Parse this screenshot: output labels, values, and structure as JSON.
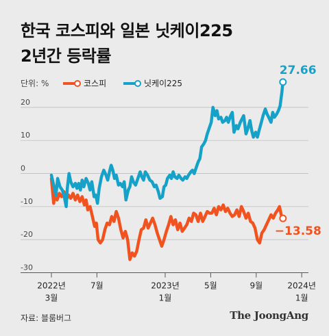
{
  "title_lines": [
    "한국 코스피와 일본 닛케이225",
    "2년간 등락률"
  ],
  "source": "자료: 블룸버그",
  "brand": "The JoongAng",
  "chart_data": {
    "type": "line",
    "unit_label": "단위: %",
    "ylim": [
      -30,
      30
    ],
    "yticks": [
      20,
      10,
      0,
      -10,
      -20,
      -30
    ],
    "xticks": [
      {
        "month": 0,
        "line1": "2022년",
        "line2": "3월"
      },
      {
        "month": 4,
        "line1": "7월",
        "line2": ""
      },
      {
        "month": 10,
        "line1": "2023년",
        "line2": "1월"
      },
      {
        "month": 14,
        "line1": "5월",
        "line2": ""
      },
      {
        "month": 18,
        "line1": "9월",
        "line2": ""
      },
      {
        "month": 22,
        "line1": "2024년",
        "line2": "1월"
      }
    ],
    "legend_position": "top-left",
    "series": [
      {
        "name": "코스피",
        "color": "#f0531f",
        "end_label": "−13.58",
        "points": [
          [
            0.0,
            -1.5
          ],
          [
            0.2,
            -9.0
          ],
          [
            0.35,
            -5.5
          ],
          [
            0.5,
            -8.0
          ],
          [
            0.7,
            -6.0
          ],
          [
            0.9,
            -7.0
          ],
          [
            1.1,
            -5.5
          ],
          [
            1.3,
            -8.0
          ],
          [
            1.5,
            -6.5
          ],
          [
            1.7,
            -7.5
          ],
          [
            1.9,
            -6.0
          ],
          [
            2.1,
            -8.0
          ],
          [
            2.3,
            -6.5
          ],
          [
            2.5,
            -8.5
          ],
          [
            2.7,
            -7.0
          ],
          [
            2.9,
            -9.5
          ],
          [
            3.05,
            -8.0
          ],
          [
            3.2,
            -11.0
          ],
          [
            3.4,
            -10.0
          ],
          [
            3.6,
            -13.0
          ],
          [
            3.8,
            -16.0
          ],
          [
            3.95,
            -15.0
          ],
          [
            4.1,
            -20.0
          ],
          [
            4.3,
            -21.0
          ],
          [
            4.5,
            -20.0
          ],
          [
            4.7,
            -17.0
          ],
          [
            4.9,
            -15.0
          ],
          [
            5.1,
            -15.5
          ],
          [
            5.3,
            -13.0
          ],
          [
            5.5,
            -14.5
          ],
          [
            5.7,
            -11.5
          ],
          [
            5.9,
            -13.5
          ],
          [
            6.1,
            -17.0
          ],
          [
            6.3,
            -19.5
          ],
          [
            6.5,
            -17.5
          ],
          [
            6.7,
            -20.0
          ],
          [
            6.9,
            -26.0
          ],
          [
            7.1,
            -24.0
          ],
          [
            7.3,
            -25.0
          ],
          [
            7.5,
            -23.5
          ],
          [
            7.7,
            -20.0
          ],
          [
            7.9,
            -17.0
          ],
          [
            8.1,
            -16.5
          ],
          [
            8.3,
            -14.0
          ],
          [
            8.5,
            -16.5
          ],
          [
            8.7,
            -15.0
          ],
          [
            8.9,
            -13.5
          ],
          [
            9.1,
            -15.5
          ],
          [
            9.3,
            -18.0
          ],
          [
            9.5,
            -20.0
          ],
          [
            9.7,
            -22.0
          ],
          [
            9.9,
            -20.0
          ],
          [
            10.1,
            -17.5
          ],
          [
            10.3,
            -15.5
          ],
          [
            10.5,
            -13.0
          ],
          [
            10.7,
            -15.5
          ],
          [
            10.9,
            -14.0
          ],
          [
            11.1,
            -17.0
          ],
          [
            11.3,
            -15.0
          ],
          [
            11.5,
            -17.5
          ],
          [
            11.7,
            -16.5
          ],
          [
            11.9,
            -15.5
          ],
          [
            12.1,
            -13.5
          ],
          [
            12.3,
            -14.5
          ],
          [
            12.5,
            -12.0
          ],
          [
            12.7,
            -12.5
          ],
          [
            12.9,
            -14.5
          ],
          [
            13.1,
            -12.0
          ],
          [
            13.3,
            -14.5
          ],
          [
            13.5,
            -13.0
          ],
          [
            13.7,
            -11.5
          ],
          [
            13.9,
            -12.0
          ],
          [
            14.1,
            -12.0
          ],
          [
            14.3,
            -10.5
          ],
          [
            14.5,
            -12.5
          ],
          [
            14.7,
            -10.0
          ],
          [
            14.9,
            -11.0
          ],
          [
            15.1,
            -9.5
          ],
          [
            15.3,
            -11.5
          ],
          [
            15.5,
            -10.5
          ],
          [
            15.7,
            -12.0
          ],
          [
            15.9,
            -13.0
          ],
          [
            16.1,
            -12.5
          ],
          [
            16.3,
            -11.0
          ],
          [
            16.5,
            -13.0
          ],
          [
            16.7,
            -10.0
          ],
          [
            16.9,
            -11.5
          ],
          [
            17.1,
            -13.5
          ],
          [
            17.3,
            -12.0
          ],
          [
            17.5,
            -14.5
          ],
          [
            17.7,
            -15.0
          ],
          [
            17.9,
            -16.5
          ],
          [
            18.1,
            -20.0
          ],
          [
            18.3,
            -21.0
          ],
          [
            18.5,
            -18.0
          ],
          [
            18.7,
            -17.0
          ],
          [
            18.9,
            -15.5
          ],
          [
            19.1,
            -14.0
          ],
          [
            19.3,
            -12.5
          ],
          [
            19.5,
            -13.5
          ],
          [
            19.7,
            -12.0
          ],
          [
            19.9,
            -11.0
          ],
          [
            20.05,
            -10.0
          ],
          [
            20.2,
            -12.5
          ],
          [
            20.35,
            -13.58
          ]
        ]
      },
      {
        "name": "닛케이225",
        "color": "#16a2c8",
        "end_label": "27.66",
        "points": [
          [
            0.0,
            -0.5
          ],
          [
            0.2,
            -3.5
          ],
          [
            0.4,
            -6.5
          ],
          [
            0.55,
            -1.5
          ],
          [
            0.75,
            -4.0
          ],
          [
            0.95,
            -5.0
          ],
          [
            1.1,
            -6.5
          ],
          [
            1.3,
            -10.0
          ],
          [
            1.4,
            -4.5
          ],
          [
            1.55,
            0.0
          ],
          [
            1.7,
            -2.5
          ],
          [
            1.9,
            -4.0
          ],
          [
            2.1,
            -3.0
          ],
          [
            2.25,
            -4.5
          ],
          [
            2.4,
            -3.0
          ],
          [
            2.55,
            -5.0
          ],
          [
            2.7,
            -2.0
          ],
          [
            2.85,
            -4.0
          ],
          [
            3.05,
            -1.5
          ],
          [
            3.25,
            -3.0
          ],
          [
            3.4,
            -5.0
          ],
          [
            3.55,
            -2.5
          ],
          [
            3.75,
            -7.0
          ],
          [
            3.9,
            -6.5
          ],
          [
            4.05,
            -9.0
          ],
          [
            4.2,
            -4.5
          ],
          [
            4.4,
            -1.0
          ],
          [
            4.6,
            1.0
          ],
          [
            4.8,
            -0.5
          ],
          [
            4.95,
            -2.0
          ],
          [
            5.1,
            0.5
          ],
          [
            5.25,
            2.5
          ],
          [
            5.4,
            1.0
          ],
          [
            5.55,
            -1.5
          ],
          [
            5.7,
            -0.5
          ],
          [
            5.9,
            -3.5
          ],
          [
            6.05,
            -3.0
          ],
          [
            6.25,
            -4.0
          ],
          [
            6.4,
            -2.5
          ],
          [
            6.55,
            -8.0
          ],
          [
            6.75,
            -5.0
          ],
          [
            6.9,
            -4.0
          ],
          [
            7.05,
            -1.0
          ],
          [
            7.2,
            -2.5
          ],
          [
            7.4,
            -3.5
          ],
          [
            7.6,
            -1.5
          ],
          [
            7.8,
            0.5
          ],
          [
            7.95,
            -1.0
          ],
          [
            8.1,
            -2.0
          ],
          [
            8.25,
            0.5
          ],
          [
            8.45,
            -0.5
          ],
          [
            8.65,
            -2.0
          ],
          [
            8.85,
            -2.5
          ],
          [
            9.05,
            -4.0
          ],
          [
            9.2,
            -3.5
          ],
          [
            9.4,
            -5.5
          ],
          [
            9.55,
            -7.5
          ],
          [
            9.75,
            -7.0
          ],
          [
            9.9,
            -4.0
          ],
          [
            10.05,
            -3.5
          ],
          [
            10.2,
            -1.5
          ],
          [
            10.4,
            -0.5
          ],
          [
            10.55,
            -1.5
          ],
          [
            10.7,
            0.5
          ],
          [
            10.85,
            -1.0
          ],
          [
            11.05,
            -1.5
          ],
          [
            11.2,
            -0.5
          ],
          [
            11.4,
            -1.5
          ],
          [
            11.55,
            -2.0
          ],
          [
            11.75,
            -1.0
          ],
          [
            11.9,
            -1.5
          ],
          [
            12.05,
            -0.5
          ],
          [
            12.25,
            0.5
          ],
          [
            12.4,
            1.0
          ],
          [
            12.55,
            0.0
          ],
          [
            12.75,
            2.0
          ],
          [
            12.9,
            3.5
          ],
          [
            13.05,
            4.5
          ],
          [
            13.2,
            8.0
          ],
          [
            13.4,
            9.0
          ],
          [
            13.55,
            10.0
          ],
          [
            13.7,
            12.0
          ],
          [
            13.9,
            14.0
          ],
          [
            14.05,
            15.5
          ],
          [
            14.2,
            20.0
          ],
          [
            14.4,
            17.5
          ],
          [
            14.55,
            19.0
          ],
          [
            14.7,
            16.5
          ],
          [
            14.9,
            17.0
          ],
          [
            15.05,
            15.5
          ],
          [
            15.25,
            16.0
          ],
          [
            15.4,
            17.0
          ],
          [
            15.55,
            15.5
          ],
          [
            15.75,
            17.5
          ],
          [
            15.9,
            18.5
          ],
          [
            16.05,
            12.5
          ],
          [
            16.25,
            14.5
          ],
          [
            16.4,
            13.5
          ],
          [
            16.6,
            15.5
          ],
          [
            16.75,
            16.5
          ],
          [
            16.9,
            17.5
          ],
          [
            17.1,
            12.0
          ],
          [
            17.25,
            13.5
          ],
          [
            17.45,
            16.0
          ],
          [
            17.6,
            13.0
          ],
          [
            17.75,
            11.0
          ],
          [
            17.95,
            12.5
          ],
          [
            18.1,
            11.0
          ],
          [
            18.25,
            13.0
          ],
          [
            18.45,
            15.5
          ],
          [
            18.6,
            17.5
          ],
          [
            18.8,
            19.5
          ],
          [
            18.95,
            18.0
          ],
          [
            19.1,
            17.0
          ],
          [
            19.3,
            15.5
          ],
          [
            19.45,
            18.5
          ],
          [
            19.6,
            17.0
          ],
          [
            19.8,
            18.0
          ],
          [
            19.95,
            19.0
          ],
          [
            20.1,
            20.5
          ],
          [
            20.25,
            24.5
          ],
          [
            20.35,
            27.66
          ]
        ]
      }
    ]
  }
}
